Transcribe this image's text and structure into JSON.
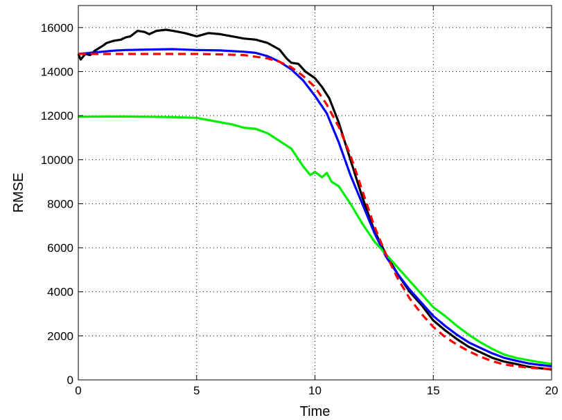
{
  "chart_data": {
    "type": "line",
    "xlabel": "Time",
    "ylabel": "RMSE",
    "xlim": [
      0,
      20
    ],
    "ylim": [
      0,
      17000
    ],
    "xticks": [
      0,
      5,
      10,
      15,
      20
    ],
    "yticks": [
      0,
      2000,
      4000,
      6000,
      8000,
      10000,
      12000,
      14000,
      16000
    ],
    "grid": true,
    "legend": "none",
    "series": [
      {
        "color": "#000000",
        "style": "solid",
        "points": [
          [
            0,
            14800
          ],
          [
            0.1,
            14550
          ],
          [
            0.3,
            14800
          ],
          [
            0.5,
            14750
          ],
          [
            0.7,
            14950
          ],
          [
            1.0,
            15150
          ],
          [
            1.2,
            15300
          ],
          [
            1.5,
            15400
          ],
          [
            1.8,
            15450
          ],
          [
            2.0,
            15550
          ],
          [
            2.2,
            15600
          ],
          [
            2.5,
            15850
          ],
          [
            2.8,
            15800
          ],
          [
            3.0,
            15700
          ],
          [
            3.3,
            15850
          ],
          [
            3.7,
            15900
          ],
          [
            4.0,
            15850
          ],
          [
            4.5,
            15750
          ],
          [
            5.0,
            15600
          ],
          [
            5.5,
            15750
          ],
          [
            6.0,
            15700
          ],
          [
            6.5,
            15600
          ],
          [
            7.0,
            15500
          ],
          [
            7.5,
            15450
          ],
          [
            8.0,
            15300
          ],
          [
            8.5,
            15000
          ],
          [
            8.8,
            14600
          ],
          [
            9.0,
            14400
          ],
          [
            9.3,
            14350
          ],
          [
            9.6,
            14000
          ],
          [
            10.0,
            13700
          ],
          [
            10.3,
            13300
          ],
          [
            10.6,
            12800
          ],
          [
            11.0,
            11700
          ],
          [
            11.5,
            10000
          ],
          [
            12.0,
            8300
          ],
          [
            12.5,
            6800
          ],
          [
            13.0,
            5700
          ],
          [
            13.5,
            4800
          ],
          [
            14.0,
            4000
          ],
          [
            14.5,
            3400
          ],
          [
            15.0,
            2700
          ],
          [
            15.5,
            2250
          ],
          [
            16.0,
            1850
          ],
          [
            16.5,
            1500
          ],
          [
            17.0,
            1250
          ],
          [
            17.5,
            1000
          ],
          [
            18.0,
            830
          ],
          [
            18.5,
            720
          ],
          [
            19.0,
            600
          ],
          [
            19.5,
            530
          ],
          [
            20.0,
            470
          ]
        ]
      },
      {
        "color": "#0000ff",
        "style": "solid",
        "points": [
          [
            0,
            14800
          ],
          [
            0.5,
            14850
          ],
          [
            1.0,
            14900
          ],
          [
            1.5,
            14950
          ],
          [
            2.0,
            14980
          ],
          [
            3.0,
            15000
          ],
          [
            4.0,
            15020
          ],
          [
            5.0,
            14980
          ],
          [
            6.0,
            14960
          ],
          [
            7.0,
            14900
          ],
          [
            7.5,
            14850
          ],
          [
            8.0,
            14700
          ],
          [
            8.5,
            14450
          ],
          [
            9.0,
            14100
          ],
          [
            9.5,
            13600
          ],
          [
            10.0,
            12900
          ],
          [
            10.5,
            12100
          ],
          [
            11.0,
            10800
          ],
          [
            11.5,
            9300
          ],
          [
            12.0,
            8000
          ],
          [
            12.5,
            6700
          ],
          [
            13.0,
            5600
          ],
          [
            13.5,
            4800
          ],
          [
            14.0,
            4100
          ],
          [
            14.5,
            3500
          ],
          [
            15.0,
            2900
          ],
          [
            15.5,
            2450
          ],
          [
            16.0,
            2050
          ],
          [
            16.5,
            1700
          ],
          [
            17.0,
            1450
          ],
          [
            17.5,
            1200
          ],
          [
            18.0,
            1000
          ],
          [
            18.5,
            870
          ],
          [
            19.0,
            750
          ],
          [
            19.5,
            680
          ],
          [
            20.0,
            620
          ]
        ]
      },
      {
        "color": "#00ee00",
        "style": "solid",
        "points": [
          [
            0,
            11950
          ],
          [
            1.0,
            11960
          ],
          [
            2.0,
            11960
          ],
          [
            3.0,
            11950
          ],
          [
            4.0,
            11930
          ],
          [
            5.0,
            11900
          ],
          [
            5.5,
            11800
          ],
          [
            6.0,
            11700
          ],
          [
            6.5,
            11600
          ],
          [
            7.0,
            11450
          ],
          [
            7.5,
            11400
          ],
          [
            8.0,
            11200
          ],
          [
            8.5,
            10850
          ],
          [
            9.0,
            10500
          ],
          [
            9.5,
            9700
          ],
          [
            9.8,
            9300
          ],
          [
            10.0,
            9450
          ],
          [
            10.3,
            9200
          ],
          [
            10.5,
            9400
          ],
          [
            10.7,
            9000
          ],
          [
            11.0,
            8800
          ],
          [
            11.5,
            8000
          ],
          [
            12.0,
            7100
          ],
          [
            12.5,
            6300
          ],
          [
            13.0,
            5700
          ],
          [
            13.5,
            5100
          ],
          [
            14.0,
            4500
          ],
          [
            14.5,
            3900
          ],
          [
            15.0,
            3300
          ],
          [
            15.5,
            2900
          ],
          [
            16.0,
            2450
          ],
          [
            16.5,
            2050
          ],
          [
            17.0,
            1700
          ],
          [
            17.5,
            1400
          ],
          [
            18.0,
            1150
          ],
          [
            18.5,
            1000
          ],
          [
            19.0,
            900
          ],
          [
            19.5,
            800
          ],
          [
            20.0,
            720
          ]
        ]
      },
      {
        "color": "#ff0000",
        "style": "dashed",
        "points": [
          [
            0,
            14800
          ],
          [
            1.0,
            14800
          ],
          [
            2.0,
            14800
          ],
          [
            3.0,
            14800
          ],
          [
            4.0,
            14800
          ],
          [
            5.0,
            14800
          ],
          [
            6.0,
            14780
          ],
          [
            7.0,
            14750
          ],
          [
            8.0,
            14600
          ],
          [
            8.5,
            14450
          ],
          [
            9.0,
            14200
          ],
          [
            9.5,
            13800
          ],
          [
            10.0,
            13300
          ],
          [
            10.5,
            12500
          ],
          [
            11.0,
            11500
          ],
          [
            11.5,
            10200
          ],
          [
            12.0,
            8600
          ],
          [
            12.5,
            7000
          ],
          [
            13.0,
            5700
          ],
          [
            13.5,
            4600
          ],
          [
            14.0,
            3700
          ],
          [
            14.5,
            3000
          ],
          [
            15.0,
            2400
          ],
          [
            15.5,
            1950
          ],
          [
            16.0,
            1600
          ],
          [
            16.5,
            1300
          ],
          [
            17.0,
            1050
          ],
          [
            17.5,
            850
          ],
          [
            18.0,
            700
          ],
          [
            18.5,
            620
          ],
          [
            19.0,
            560
          ],
          [
            19.5,
            520
          ],
          [
            20.0,
            500
          ]
        ]
      }
    ]
  }
}
